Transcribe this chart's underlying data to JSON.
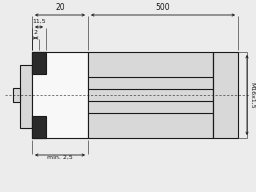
{
  "bg_color": "#ececec",
  "line_color": "#1a1a1a",
  "dark_fill": "#2a2a2a",
  "light_fill": "#d8d8d8",
  "white_fill": "#f8f8f8",
  "mid_fill": "#c8c8c8",
  "fig_width": 2.56,
  "fig_height": 1.92,
  "dpi": 100,
  "dim_20_text": "20",
  "dim_500_text": "500",
  "dim_11_5_text": "11,5",
  "dim_2_text": "2",
  "dim_min25_text": "min. 2,5",
  "dim_M16_text": "M16x1,5"
}
